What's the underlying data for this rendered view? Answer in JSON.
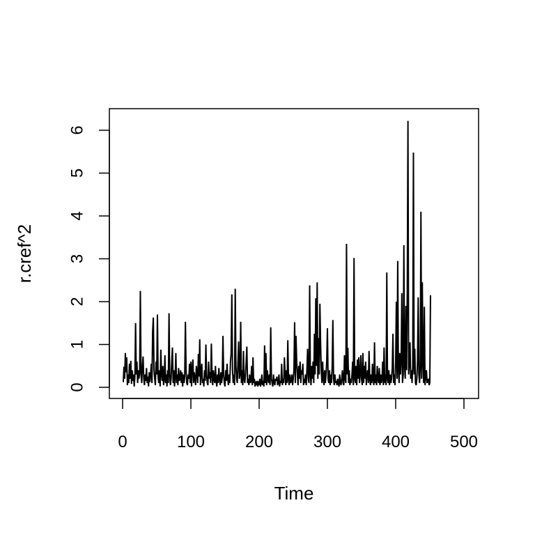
{
  "chart_data": {
    "type": "line",
    "title": "",
    "xlabel": "Time",
    "ylabel": "r.cref^2",
    "xlim": [
      0,
      500
    ],
    "ylim": [
      0,
      6.4
    ],
    "xticks": [
      0,
      100,
      200,
      300,
      400,
      500
    ],
    "yticks": [
      0,
      1,
      2,
      3,
      4,
      5,
      6
    ],
    "xtick_labels": [
      "0",
      "100",
      "200",
      "300",
      "400",
      "500"
    ],
    "ytick_labels": [
      "0",
      "1",
      "2",
      "3",
      "4",
      "5",
      "6"
    ],
    "grid": false,
    "line_color": "#000000",
    "series": [
      {
        "x_start": 1,
        "x_step": 1,
        "values": [
          0.12,
          0.48,
          0.2,
          0.8,
          0.35,
          0.7,
          0.05,
          0.3,
          0.1,
          0.55,
          0.2,
          0.62,
          0.08,
          0.4,
          0.15,
          0.3,
          0.02,
          0.25,
          1.5,
          0.3,
          0.6,
          0.1,
          0.4,
          0.2,
          0.35,
          2.25,
          0.3,
          0.1,
          0.5,
          0.72,
          0.2,
          0.05,
          0.3,
          0.15,
          0.45,
          0.1,
          0.25,
          0.02,
          0.35,
          0.12,
          0.3,
          0.55,
          0.1,
          1.3,
          1.63,
          0.4,
          0.2,
          0.05,
          0.6,
          0.3,
          1.7,
          0.25,
          0.1,
          0.4,
          0.02,
          0.88,
          0.3,
          0.15,
          0.5,
          0.05,
          0.2,
          0.75,
          0.1,
          0.3,
          0.02,
          0.4,
          0.1,
          1.73,
          0.3,
          0.05,
          0.2,
          0.6,
          0.93,
          0.1,
          0.4,
          0.02,
          0.25,
          0.8,
          0.1,
          0.3,
          0.05,
          0.45,
          0.15,
          0.2,
          0.4,
          0.1,
          0.35,
          0.02,
          0.3,
          0.1,
          0.25,
          1.53,
          0.4,
          0.1,
          0.05,
          0.3,
          0.2,
          0.55,
          0.1,
          0.6,
          0.02,
          0.45,
          0.65,
          0.1,
          0.35,
          0.2,
          0.05,
          0.5,
          0.3,
          0.1,
          0.78,
          0.25,
          1.12,
          0.05,
          0.3,
          0.55,
          0.1,
          0.2,
          0.02,
          0.4,
          0.15,
          1.0,
          0.3,
          0.1,
          0.05,
          0.6,
          0.2,
          0.35,
          0.1,
          1.02,
          0.3,
          0.05,
          0.4,
          0.2,
          0.1,
          0.5,
          0.15,
          0.02,
          0.3,
          0.1,
          0.45,
          0.2,
          0.05,
          0.35,
          0.1,
          0.25,
          1.2,
          0.3,
          0.1,
          0.02,
          0.4,
          0.15,
          0.55,
          0.2,
          0.05,
          0.3,
          0.1,
          0.6,
          0.8,
          2.17,
          0.4,
          0.1,
          0.3,
          0.05,
          2.3,
          0.5,
          0.2,
          0.1,
          0.6,
          1.07,
          0.2,
          0.3,
          1.53,
          0.1,
          0.4,
          0.05,
          0.85,
          0.2,
          0.1,
          0.3,
          0.6,
          0.95,
          0.1,
          0.2,
          0.05,
          0.3,
          0.1,
          0.15,
          0.5,
          0.05,
          0.7,
          0.1,
          0.2,
          0.02,
          0.1,
          0.05,
          0.15,
          0.02,
          0.1,
          0.05,
          0.2,
          0.02,
          0.1,
          0.3,
          0.05,
          0.15,
          0.02,
          0.98,
          0.1,
          0.8,
          0.05,
          0.4,
          0.2,
          0.1,
          0.3,
          0.05,
          1.4,
          0.2,
          0.1,
          0.02,
          0.3,
          0.1,
          0.05,
          0.2,
          0.15,
          0.25,
          0.05,
          0.1,
          0.3,
          0.02,
          0.15,
          0.1,
          0.55,
          0.05,
          0.2,
          0.1,
          0.7,
          0.3,
          0.05,
          0.4,
          0.1,
          1.1,
          0.2,
          0.05,
          0.3,
          0.1,
          0.15,
          0.3,
          0.05,
          0.2,
          0.4,
          1.52,
          0.1,
          1.2,
          0.6,
          0.3,
          0.05,
          0.5,
          0.2,
          0.6,
          0.1,
          0.4,
          0.3,
          0.55,
          0.05,
          0.2,
          0.1,
          0.3,
          0.05,
          0.4,
          0.9,
          0.2,
          0.1,
          2.38,
          0.3,
          0.05,
          0.5,
          0.2,
          0.6,
          0.1,
          1.25,
          0.3,
          2.08,
          0.5,
          2.45,
          0.2,
          1.15,
          0.3,
          1.95,
          1.05,
          0.4,
          0.1,
          0.6,
          0.2,
          0.05,
          0.4,
          0.1,
          0.3,
          0.6,
          1.38,
          0.2,
          0.1,
          0.4,
          0.05,
          0.3,
          0.1,
          0.5,
          1.57,
          0.2,
          0.05,
          0.3,
          0.1,
          0.15,
          0.05,
          0.2,
          0.1,
          0.02,
          0.3,
          0.1,
          0.05,
          0.2,
          0.4,
          0.1,
          0.05,
          0.75,
          0.2,
          0.1,
          3.35,
          0.3,
          0.92,
          0.1,
          0.4,
          0.05,
          0.2,
          0.1,
          0.3,
          0.6,
          0.05,
          3.02,
          0.2,
          0.1,
          0.5,
          0.05,
          0.65,
          0.2,
          0.7,
          0.1,
          0.3,
          0.75,
          0.2,
          0.05,
          0.8,
          0.1,
          0.5,
          0.2,
          0.6,
          0.05,
          0.3,
          0.4,
          0.1,
          0.85,
          0.2,
          0.05,
          0.3,
          0.1,
          0.55,
          0.2,
          0.05,
          1.05,
          0.1,
          0.3,
          0.05,
          0.5,
          0.2,
          0.1,
          0.45,
          0.05,
          0.3,
          0.1,
          0.2,
          0.6,
          0.05,
          0.93,
          0.1,
          0.3,
          0.05,
          2.68,
          0.2,
          0.1,
          0.4,
          0.05,
          0.3,
          0.1,
          0.2,
          0.45,
          1.25,
          0.1,
          0.3,
          0.05,
          0.6,
          2.0,
          0.2,
          2.95,
          0.4,
          0.1,
          0.8,
          0.3,
          0.6,
          2.2,
          0.1,
          0.3,
          3.32,
          0.5,
          0.2,
          1.9,
          0.4,
          2.25,
          6.22,
          0.3,
          0.6,
          1.05,
          0.2,
          0.4,
          0.1,
          0.5,
          5.48,
          0.3,
          0.9,
          0.1,
          0.05,
          0.2,
          0.6,
          2.1,
          0.3,
          0.1,
          0.5,
          4.1,
          0.2,
          2.45,
          0.6,
          0.1,
          1.88,
          0.05,
          0.3,
          0.4,
          0.1,
          0.15,
          0.2,
          0.05,
          0.1,
          2.15
        ]
      }
    ]
  }
}
